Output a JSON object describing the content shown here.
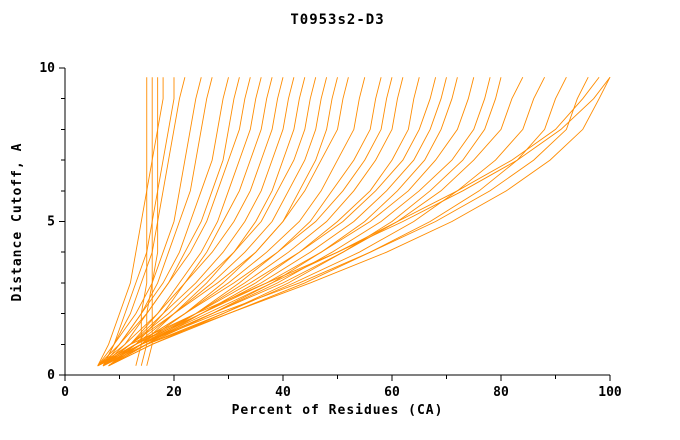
{
  "colors": {
    "curve": "#FF8C00",
    "axis": "#000000",
    "background": "#FFFFFF"
  },
  "chart_data": {
    "type": "line",
    "title": "T0953s2-D3",
    "xlabel": "Percent of Residues (CA)",
    "ylabel": "Distance Cutoff, A",
    "xlim": [
      0,
      100
    ],
    "ylim": [
      0,
      10
    ],
    "x_ticks": [
      0,
      20,
      40,
      60,
      80,
      100
    ],
    "x_minor_ticks": [
      10,
      30,
      50,
      70,
      90
    ],
    "y_ticks": [
      0,
      5,
      10
    ],
    "y_minor_ticks": [
      1,
      2,
      3,
      4,
      6,
      7,
      8,
      9
    ],
    "grid": false,
    "legend": "none",
    "line_color": "#FF8C00",
    "y_levels": [
      0.3,
      1,
      2,
      3,
      4,
      5,
      6,
      7,
      8,
      9,
      9.7
    ],
    "series": [
      [
        13,
        14,
        14,
        15,
        15,
        15,
        15,
        15,
        15,
        15,
        15
      ],
      [
        14,
        15,
        15,
        16,
        16,
        16,
        16,
        16,
        16,
        16,
        16
      ],
      [
        15,
        16,
        16,
        16,
        17,
        17,
        17,
        17,
        17,
        17,
        17
      ],
      [
        6,
        8,
        10,
        12,
        13,
        14,
        15,
        16,
        17,
        18,
        18
      ],
      [
        7,
        9,
        11,
        13,
        15,
        16,
        17,
        18,
        19,
        20,
        20
      ],
      [
        7,
        9,
        12,
        14,
        16,
        17,
        18,
        19,
        20,
        21,
        22
      ],
      [
        6,
        9,
        13,
        16,
        18,
        20,
        21,
        22,
        23,
        24,
        25
      ],
      [
        7,
        10,
        14,
        17,
        19,
        21,
        23,
        24,
        25,
        26,
        27
      ],
      [
        6,
        10,
        14,
        18,
        21,
        23,
        25,
        27,
        28,
        29,
        30
      ],
      [
        7,
        11,
        15,
        19,
        22,
        25,
        27,
        29,
        30,
        31,
        32
      ],
      [
        6,
        10,
        15,
        19,
        23,
        26,
        28,
        30,
        32,
        33,
        34
      ],
      [
        7,
        12,
        17,
        21,
        25,
        28,
        30,
        32,
        34,
        35,
        36
      ],
      [
        8,
        13,
        18,
        22,
        26,
        29,
        32,
        34,
        36,
        37,
        38
      ],
      [
        6,
        11,
        17,
        22,
        27,
        31,
        34,
        36,
        38,
        39,
        40
      ],
      [
        7,
        12,
        18,
        24,
        29,
        33,
        36,
        38,
        40,
        41,
        42
      ],
      [
        8,
        14,
        20,
        26,
        31,
        35,
        38,
        40,
        42,
        43,
        44
      ],
      [
        6,
        12,
        19,
        25,
        31,
        36,
        39,
        42,
        44,
        45,
        46
      ],
      [
        7,
        13,
        20,
        27,
        33,
        38,
        41,
        44,
        46,
        47,
        48
      ],
      [
        8,
        14,
        22,
        29,
        35,
        40,
        43,
        46,
        48,
        49,
        50
      ],
      [
        6,
        12,
        20,
        28,
        35,
        40,
        44,
        47,
        50,
        51,
        52
      ],
      [
        7,
        13,
        22,
        30,
        37,
        43,
        47,
        50,
        53,
        54,
        55
      ],
      [
        8,
        15,
        24,
        32,
        39,
        45,
        49,
        53,
        56,
        57,
        58
      ],
      [
        6,
        13,
        22,
        31,
        39,
        46,
        51,
        55,
        58,
        59,
        60
      ],
      [
        7,
        14,
        24,
        33,
        41,
        48,
        53,
        57,
        60,
        61,
        62
      ],
      [
        8,
        15,
        25,
        35,
        43,
        50,
        56,
        60,
        63,
        64,
        65
      ],
      [
        6,
        13,
        24,
        34,
        43,
        51,
        57,
        62,
        65,
        67,
        68
      ],
      [
        7,
        14,
        25,
        36,
        45,
        53,
        59,
        64,
        67,
        69,
        70
      ],
      [
        8,
        15,
        27,
        38,
        47,
        55,
        61,
        66,
        69,
        71,
        72
      ],
      [
        6,
        13,
        25,
        37,
        47,
        56,
        63,
        68,
        72,
        74,
        75
      ],
      [
        7,
        14,
        27,
        39,
        49,
        58,
        65,
        71,
        75,
        77,
        78
      ],
      [
        8,
        16,
        29,
        41,
        51,
        60,
        67,
        73,
        77,
        79,
        80
      ],
      [
        6,
        14,
        27,
        40,
        51,
        61,
        69,
        75,
        80,
        82,
        84
      ],
      [
        7,
        15,
        29,
        42,
        54,
        64,
        72,
        79,
        84,
        86,
        88
      ],
      [
        8,
        16,
        30,
        44,
        56,
        67,
        76,
        83,
        88,
        90,
        92
      ],
      [
        6,
        14,
        28,
        43,
        56,
        68,
        78,
        86,
        92,
        94,
        96
      ],
      [
        7,
        15,
        30,
        45,
        59,
        71,
        81,
        89,
        95,
        98,
        100
      ],
      [
        6,
        12,
        24,
        37,
        50,
        62,
        73,
        83,
        91,
        97,
        100
      ],
      [
        8,
        14,
        26,
        38,
        50,
        61,
        72,
        82,
        90,
        95,
        98
      ]
    ]
  }
}
